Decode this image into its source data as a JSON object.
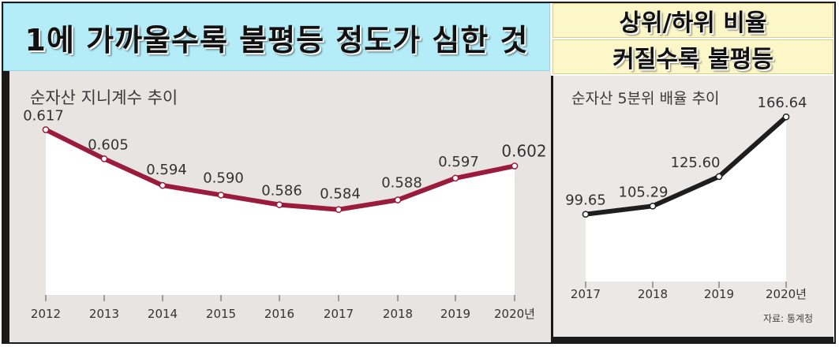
{
  "header": {
    "main_title": "1에 가까울수록 불평등 정도가 심한 것",
    "right_line1": "상위/하위 비율",
    "right_line2": "커질수록 불평등"
  },
  "chart_data": [
    {
      "type": "area",
      "title": "순자산 지니계수 추이",
      "categories": [
        "2012",
        "2013",
        "2014",
        "2015",
        "2016",
        "2017",
        "2018",
        "2019",
        "2020년"
      ],
      "value_labels": [
        "0.617",
        "0.605",
        "0.594",
        "0.590",
        "0.586",
        "0.584",
        "0.588",
        "0.597",
        "0.602"
      ],
      "values": [
        0.617,
        0.605,
        0.594,
        0.59,
        0.586,
        0.584,
        0.588,
        0.597,
        0.602
      ],
      "ylim": [
        0.55,
        0.625
      ],
      "grid": false,
      "colors": {
        "line": "#9b1b3c",
        "fill": "#ffffff",
        "background": "#e8e4e2"
      }
    },
    {
      "type": "area",
      "title": "순자산 5분위 배율 추이",
      "categories": [
        "2017",
        "2018",
        "2019",
        "2020년"
      ],
      "value_labels": [
        "99.65",
        "105.29",
        "125.60",
        "166.64"
      ],
      "values": [
        99.65,
        105.29,
        125.6,
        166.64
      ],
      "ylim": [
        55,
        170
      ],
      "grid": false,
      "source": "자료: 통계청",
      "colors": {
        "line": "#1e1e1e",
        "fill": "#ffffff",
        "background": "#ebe8e6"
      }
    }
  ]
}
